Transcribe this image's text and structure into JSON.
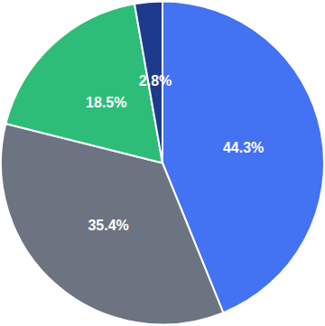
{
  "chart_data": {
    "type": "pie",
    "values": [
      44.3,
      35.4,
      18.5,
      2.8
    ],
    "value_labels": [
      "44.3%",
      "35.4%",
      "18.5%",
      "2.8%"
    ],
    "colors": [
      "#4372f2",
      "#6b7480",
      "#2dbd78",
      "#1d3a8c"
    ],
    "data_labels": true
  }
}
